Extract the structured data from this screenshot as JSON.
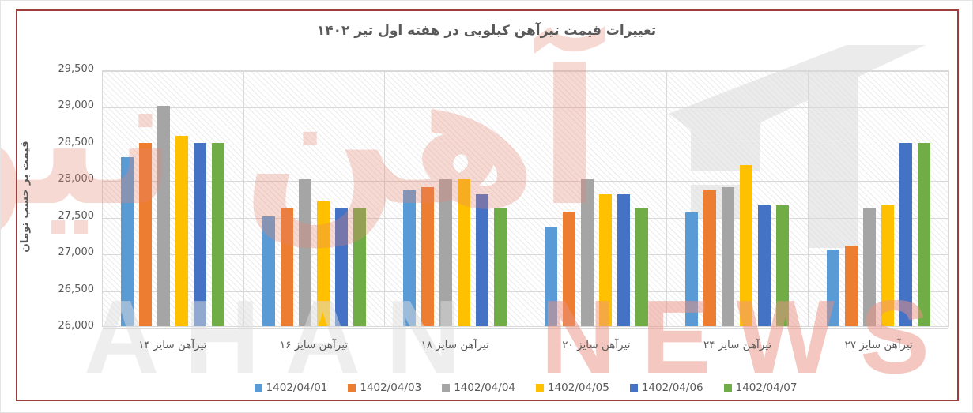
{
  "chart_data": {
    "type": "bar",
    "title": "تغییرات قیمت تیرآهن کیلویی در هفته اول تیر ۱۴۰۲",
    "xlabel": "",
    "ylabel": "قیمت بر حسب تومان",
    "categories": [
      "تیرآهن سایز ۱۴",
      "تیرآهن سایز ۱۶",
      "تیرآهن سایز ۱۸",
      "تیرآهن سایز ۲۰",
      "تیرآهن سایز ۲۴",
      "تیرآهن سایز ۲۷"
    ],
    "series": [
      {
        "name": "1402/04/01",
        "color": "#5B9BD5",
        "values": [
          28300,
          27500,
          27850,
          27350,
          27550,
          27050
        ]
      },
      {
        "name": "1402/04/03",
        "color": "#ED7D31",
        "values": [
          28500,
          27600,
          27900,
          27550,
          27850,
          27100
        ]
      },
      {
        "name": "1402/04/04",
        "color": "#A5A5A5",
        "values": [
          29000,
          28000,
          28000,
          28000,
          27900,
          27600
        ]
      },
      {
        "name": "1402/04/05",
        "color": "#FFC000",
        "values": [
          28600,
          27700,
          28000,
          27800,
          28200,
          27650
        ]
      },
      {
        "name": "1402/04/06",
        "color": "#4472C4",
        "values": [
          28500,
          27600,
          27800,
          27800,
          27650,
          28500
        ]
      },
      {
        "name": "1402/04/07",
        "color": "#70AD47",
        "values": [
          28500,
          27600,
          27600,
          27600,
          27650,
          28500
        ]
      }
    ],
    "ylim": [
      26000,
      29500
    ],
    "ytick_step": 500,
    "ytick_labels": [
      "26,000",
      "26,500",
      "27,000",
      "27,500",
      "28,000",
      "28,500",
      "29,000",
      "29,500"
    ],
    "grid": true,
    "legend_position": "bottom"
  },
  "watermark": {
    "persian_text": "آهن نیوز",
    "latin_left": "AHAN",
    "latin_right": "NEWS",
    "persian_color": "#E8836F",
    "latin_left_color": "#DEDEDE",
    "latin_right_color": "#EB9383",
    "logo_color": "#D9D9D9"
  },
  "frame": {
    "border_color": "#9E3E3C",
    "title_color": "#595959",
    "axis_text_color": "#595959",
    "grid_color": "#D9D9D9"
  }
}
